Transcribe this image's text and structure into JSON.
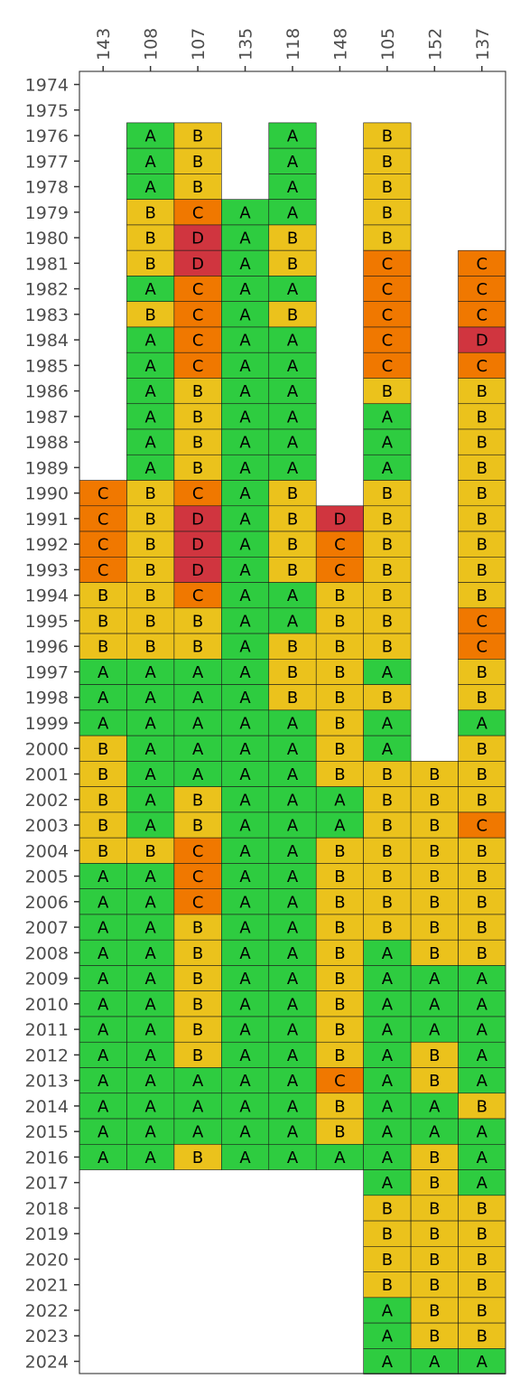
{
  "chart_data": {
    "type": "heatmap",
    "title": "",
    "xlabel": "",
    "ylabel": "",
    "x_axis_position": "top",
    "grid": false,
    "legend": "none",
    "columns": [
      "143",
      "108",
      "107",
      "135",
      "118",
      "148",
      "105",
      "152",
      "137"
    ],
    "rows": [
      "1974",
      "1975",
      "1976",
      "1977",
      "1978",
      "1979",
      "1980",
      "1981",
      "1982",
      "1983",
      "1984",
      "1985",
      "1986",
      "1987",
      "1988",
      "1989",
      "1990",
      "1991",
      "1992",
      "1993",
      "1994",
      "1995",
      "1996",
      "1997",
      "1998",
      "1999",
      "2000",
      "2001",
      "2002",
      "2003",
      "2004",
      "2005",
      "2006",
      "2007",
      "2008",
      "2009",
      "2010",
      "2011",
      "2012",
      "2013",
      "2014",
      "2015",
      "2016",
      "2017",
      "2018",
      "2019",
      "2020",
      "2021",
      "2022",
      "2023",
      "2024"
    ],
    "grade_colors": {
      "A": "#2ecc40",
      "B": "#ebc21c",
      "C": "#f07800",
      "D": "#d0353f"
    },
    "values": {
      "143": {
        "1990": "C",
        "1991": "C",
        "1992": "C",
        "1993": "C",
        "1994": "B",
        "1995": "B",
        "1996": "B",
        "1997": "A",
        "1998": "A",
        "1999": "A",
        "2000": "B",
        "2001": "B",
        "2002": "B",
        "2003": "B",
        "2004": "B",
        "2005": "A",
        "2006": "A",
        "2007": "A",
        "2008": "A",
        "2009": "A",
        "2010": "A",
        "2011": "A",
        "2012": "A",
        "2013": "A",
        "2014": "A",
        "2015": "A",
        "2016": "A"
      },
      "108": {
        "1976": "A",
        "1977": "A",
        "1978": "A",
        "1979": "B",
        "1980": "B",
        "1981": "B",
        "1982": "A",
        "1983": "B",
        "1984": "A",
        "1985": "A",
        "1986": "A",
        "1987": "A",
        "1988": "A",
        "1989": "A",
        "1990": "B",
        "1991": "B",
        "1992": "B",
        "1993": "B",
        "1994": "B",
        "1995": "B",
        "1996": "B",
        "1997": "A",
        "1998": "A",
        "1999": "A",
        "2000": "A",
        "2001": "A",
        "2002": "A",
        "2003": "A",
        "2004": "B",
        "2005": "A",
        "2006": "A",
        "2007": "A",
        "2008": "A",
        "2009": "A",
        "2010": "A",
        "2011": "A",
        "2012": "A",
        "2013": "A",
        "2014": "A",
        "2015": "A",
        "2016": "A"
      },
      "107": {
        "1976": "B",
        "1977": "B",
        "1978": "B",
        "1979": "C",
        "1980": "D",
        "1981": "D",
        "1982": "C",
        "1983": "C",
        "1984": "C",
        "1985": "C",
        "1986": "B",
        "1987": "B",
        "1988": "B",
        "1989": "B",
        "1990": "C",
        "1991": "D",
        "1992": "D",
        "1993": "D",
        "1994": "C",
        "1995": "B",
        "1996": "B",
        "1997": "A",
        "1998": "A",
        "1999": "A",
        "2000": "A",
        "2001": "A",
        "2002": "B",
        "2003": "B",
        "2004": "C",
        "2005": "C",
        "2006": "C",
        "2007": "B",
        "2008": "B",
        "2009": "B",
        "2010": "B",
        "2011": "B",
        "2012": "B",
        "2013": "A",
        "2014": "A",
        "2015": "A",
        "2016": "B"
      },
      "135": {
        "1979": "A",
        "1980": "A",
        "1981": "A",
        "1982": "A",
        "1983": "A",
        "1984": "A",
        "1985": "A",
        "1986": "A",
        "1987": "A",
        "1988": "A",
        "1989": "A",
        "1990": "A",
        "1991": "A",
        "1992": "A",
        "1993": "A",
        "1994": "A",
        "1995": "A",
        "1996": "A",
        "1997": "A",
        "1998": "A",
        "1999": "A",
        "2000": "A",
        "2001": "A",
        "2002": "A",
        "2003": "A",
        "2004": "A",
        "2005": "A",
        "2006": "A",
        "2007": "A",
        "2008": "A",
        "2009": "A",
        "2010": "A",
        "2011": "A",
        "2012": "A",
        "2013": "A",
        "2014": "A",
        "2015": "A",
        "2016": "A"
      },
      "118": {
        "1976": "A",
        "1977": "A",
        "1978": "A",
        "1979": "A",
        "1980": "B",
        "1981": "B",
        "1982": "A",
        "1983": "B",
        "1984": "A",
        "1985": "A",
        "1986": "A",
        "1987": "A",
        "1988": "A",
        "1989": "A",
        "1990": "B",
        "1991": "B",
        "1992": "B",
        "1993": "B",
        "1994": "A",
        "1995": "A",
        "1996": "B",
        "1997": "B",
        "1998": "B",
        "1999": "A",
        "2000": "A",
        "2001": "A",
        "2002": "A",
        "2003": "A",
        "2004": "A",
        "2005": "A",
        "2006": "A",
        "2007": "A",
        "2008": "A",
        "2009": "A",
        "2010": "A",
        "2011": "A",
        "2012": "A",
        "2013": "A",
        "2014": "A",
        "2015": "A",
        "2016": "A"
      },
      "148": {
        "1991": "D",
        "1992": "C",
        "1993": "C",
        "1994": "B",
        "1995": "B",
        "1996": "B",
        "1997": "B",
        "1998": "B",
        "1999": "B",
        "2000": "B",
        "2001": "B",
        "2002": "A",
        "2003": "A",
        "2004": "B",
        "2005": "B",
        "2006": "B",
        "2007": "B",
        "2008": "B",
        "2009": "B",
        "2010": "B",
        "2011": "B",
        "2012": "B",
        "2013": "C",
        "2014": "B",
        "2015": "B",
        "2016": "A"
      },
      "105": {
        "1976": "B",
        "1977": "B",
        "1978": "B",
        "1979": "B",
        "1980": "B",
        "1981": "C",
        "1982": "C",
        "1983": "C",
        "1984": "C",
        "1985": "C",
        "1986": "B",
        "1987": "A",
        "1988": "A",
        "1989": "A",
        "1990": "B",
        "1991": "B",
        "1992": "B",
        "1993": "B",
        "1994": "B",
        "1995": "B",
        "1996": "B",
        "1997": "A",
        "1998": "B",
        "1999": "A",
        "2000": "A",
        "2001": "B",
        "2002": "B",
        "2003": "B",
        "2004": "B",
        "2005": "B",
        "2006": "B",
        "2007": "B",
        "2008": "A",
        "2009": "A",
        "2010": "A",
        "2011": "A",
        "2012": "A",
        "2013": "A",
        "2014": "A",
        "2015": "A",
        "2016": "A",
        "2017": "A",
        "2018": "B",
        "2019": "B",
        "2020": "B",
        "2021": "B",
        "2022": "A",
        "2023": "A",
        "2024": "A"
      },
      "152": {
        "2001": "B",
        "2002": "B",
        "2003": "B",
        "2004": "B",
        "2005": "B",
        "2006": "B",
        "2007": "B",
        "2008": "B",
        "2009": "A",
        "2010": "A",
        "2011": "A",
        "2012": "B",
        "2013": "B",
        "2014": "A",
        "2015": "A",
        "2016": "B",
        "2017": "B",
        "2018": "B",
        "2019": "B",
        "2020": "B",
        "2021": "B",
        "2022": "B",
        "2023": "B",
        "2024": "A"
      },
      "137": {
        "1981": "C",
        "1982": "C",
        "1983": "C",
        "1984": "D",
        "1985": "C",
        "1986": "B",
        "1987": "B",
        "1988": "B",
        "1989": "B",
        "1990": "B",
        "1991": "B",
        "1992": "B",
        "1993": "B",
        "1994": "B",
        "1995": "C",
        "1996": "C",
        "1997": "B",
        "1998": "B",
        "1999": "A",
        "2000": "B",
        "2001": "B",
        "2002": "B",
        "2003": "C",
        "2004": "B",
        "2005": "B",
        "2006": "B",
        "2007": "B",
        "2008": "B",
        "2009": "A",
        "2010": "A",
        "2011": "A",
        "2012": "A",
        "2013": "A",
        "2014": "B",
        "2015": "A",
        "2016": "A",
        "2017": "A",
        "2018": "B",
        "2019": "B",
        "2020": "B",
        "2021": "B",
        "2022": "B",
        "2023": "B",
        "2024": "A"
      }
    }
  }
}
